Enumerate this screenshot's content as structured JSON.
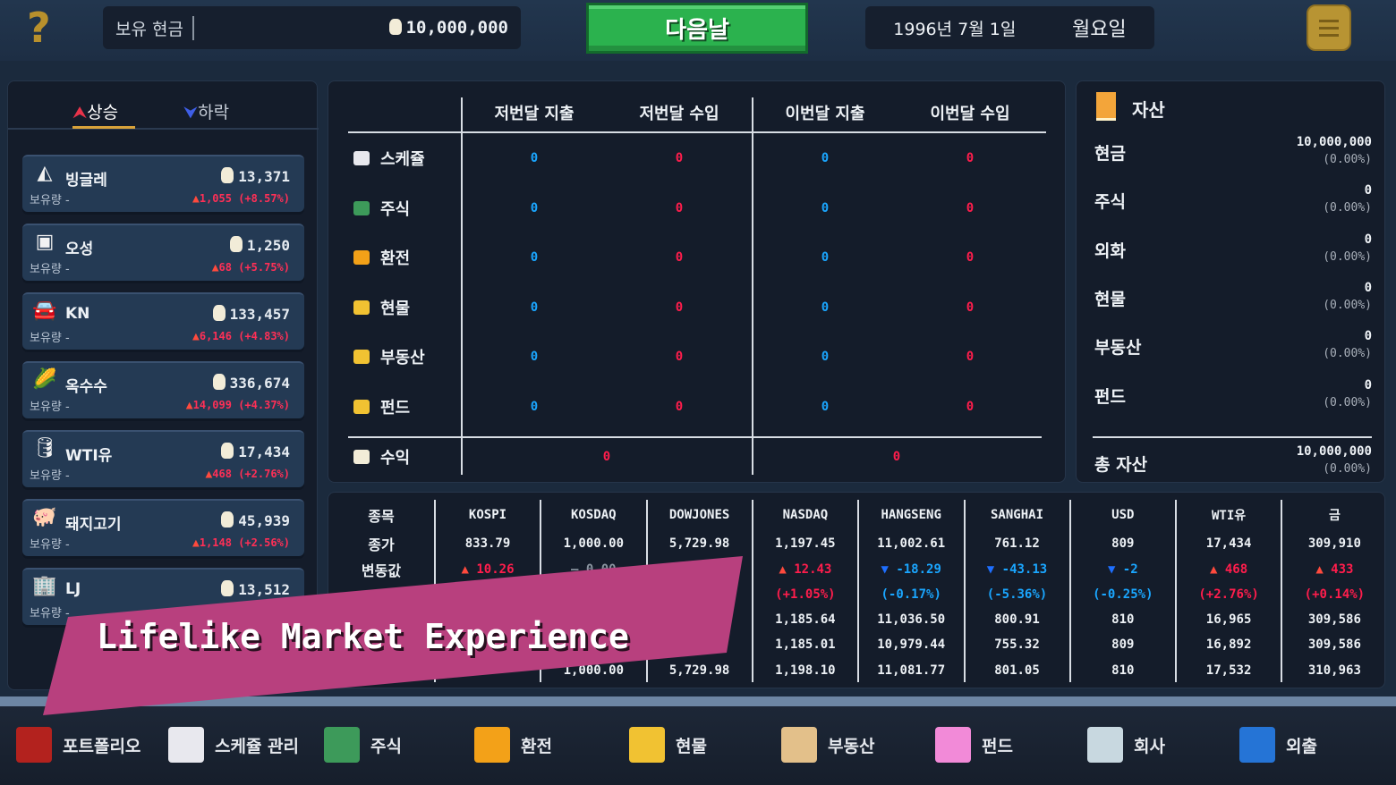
{
  "topbar": {
    "help_icon": "question-icon",
    "cash_label": "보유 현금",
    "cash_value": "10,000,000",
    "next_day": "다음날",
    "date": "1996년 7월 1일",
    "weekday": "월요일",
    "menu_icon": "menu-icon"
  },
  "movers": {
    "tabs": [
      "상승",
      "하락"
    ],
    "active_tab": "상승",
    "holding_label": "보유량 -",
    "items": [
      {
        "name": "빙글레",
        "icon": "pizza-icon",
        "price": "13,371",
        "change": "1,055 (+8.57%)"
      },
      {
        "name": "오성",
        "icon": "chip-icon",
        "price": "1,250",
        "change": "68 (+5.75%)"
      },
      {
        "name": "KN",
        "icon": "car-icon",
        "price": "133,457",
        "change": "6,146 (+4.83%)"
      },
      {
        "name": "옥수수",
        "icon": "corn-icon",
        "price": "336,674",
        "change": "14,099 (+4.37%)"
      },
      {
        "name": "WTI유",
        "icon": "oil-icon",
        "price": "17,434",
        "change": "468 (+2.76%)"
      },
      {
        "name": "돼지고기",
        "icon": "pork-icon",
        "price": "45,939",
        "change": "1,148 (+2.56%)"
      },
      {
        "name": "LJ",
        "icon": "building-icon",
        "price": "13,512",
        "change": ""
      }
    ]
  },
  "ledger": {
    "headers": [
      "저번달 지출",
      "저번달 수입",
      "이번달 지출",
      "이번달 수입"
    ],
    "rows": [
      {
        "label": "스케쥴",
        "icon": "calendar-icon",
        "values": [
          "0",
          "0",
          "0",
          "0"
        ]
      },
      {
        "label": "주식",
        "icon": "chart-icon",
        "values": [
          "0",
          "0",
          "0",
          "0"
        ]
      },
      {
        "label": "환전",
        "icon": "coin-icon",
        "values": [
          "0",
          "0",
          "0",
          "0"
        ]
      },
      {
        "label": "현물",
        "icon": "gold-icon",
        "values": [
          "0",
          "0",
          "0",
          "0"
        ]
      },
      {
        "label": "부동산",
        "icon": "gold-icon",
        "values": [
          "0",
          "0",
          "0",
          "0"
        ]
      },
      {
        "label": "펀드",
        "icon": "gold-icon",
        "values": [
          "0",
          "0",
          "0",
          "0"
        ]
      }
    ],
    "profit_label": "수익",
    "profit_values": [
      "0",
      "0"
    ]
  },
  "assets": {
    "title": "자산",
    "rows": [
      {
        "label": "현금",
        "value": "10,000,000",
        "pct": "(0.00%)"
      },
      {
        "label": "주식",
        "value": "0",
        "pct": "(0.00%)"
      },
      {
        "label": "외화",
        "value": "0",
        "pct": "(0.00%)"
      },
      {
        "label": "현물",
        "value": "0",
        "pct": "(0.00%)"
      },
      {
        "label": "부동산",
        "value": "0",
        "pct": "(0.00%)"
      },
      {
        "label": "펀드",
        "value": "0",
        "pct": "(0.00%)"
      }
    ],
    "total_label": "총 자산",
    "total_value": "10,000,000",
    "total_pct": "(0.00%)"
  },
  "market": {
    "row_labels": [
      "종목",
      "종가",
      "변동값"
    ],
    "columns": [
      {
        "name": "KOSPI",
        "close": "833.79",
        "change": "10.26",
        "dir": "up",
        "pct": "",
        "r5": "",
        "r6": "",
        "r7": ""
      },
      {
        "name": "KOSDAQ",
        "close": "1,000.00",
        "change": "0.00",
        "dir": "flat",
        "pct": "",
        "r5": "",
        "r6": "",
        "r7": "1,000.00"
      },
      {
        "name": "DOWJONES",
        "close": "5,729.98",
        "change": "",
        "dir": "",
        "pct": "",
        "r5": "",
        "r6": "",
        "r7": "5,729.98"
      },
      {
        "name": "NASDAQ",
        "close": "1,197.45",
        "change": "12.43",
        "dir": "up",
        "pct": "(+1.05%)",
        "r5": "1,185.64",
        "r6": "1,185.01",
        "r7": "1,198.10"
      },
      {
        "name": "HANGSENG",
        "close": "11,002.61",
        "change": "-18.29",
        "dir": "down",
        "pct": "(-0.17%)",
        "r5": "11,036.50",
        "r6": "10,979.44",
        "r7": "11,081.77"
      },
      {
        "name": "SANGHAI",
        "close": "761.12",
        "change": "-43.13",
        "dir": "down",
        "pct": "(-5.36%)",
        "r5": "800.91",
        "r6": "755.32",
        "r7": "801.05"
      },
      {
        "name": "USD",
        "close": "809",
        "change": "-2",
        "dir": "down",
        "pct": "(-0.25%)",
        "r5": "810",
        "r6": "809",
        "r7": "810"
      },
      {
        "name": "WTI유",
        "close": "17,434",
        "change": "468",
        "dir": "up",
        "pct": "(+2.76%)",
        "r5": "16,965",
        "r6": "16,892",
        "r7": "17,532"
      },
      {
        "name": "금",
        "close": "309,910",
        "change": "433",
        "dir": "up",
        "pct": "(+0.14%)",
        "r5": "309,586",
        "r6": "309,586",
        "r7": "310,963"
      }
    ]
  },
  "nav": [
    {
      "label": "포트폴리오",
      "icon": "wallet-icon",
      "color": "#b3221e"
    },
    {
      "label": "스케쥴 관리",
      "icon": "calendar-icon",
      "color": "#e8e8ee"
    },
    {
      "label": "주식",
      "icon": "chart-icon",
      "color": "#3d9a5a"
    },
    {
      "label": "환전",
      "icon": "coin-icon",
      "color": "#f3a118"
    },
    {
      "label": "현물",
      "icon": "gold-icon",
      "color": "#f1c232"
    },
    {
      "label": "부동산",
      "icon": "house-icon",
      "color": "#e3c08a"
    },
    {
      "label": "펀드",
      "icon": "piggy-bank-icon",
      "color": "#f28ad8"
    },
    {
      "label": "회사",
      "icon": "office-icon",
      "color": "#c8d8e0"
    },
    {
      "label": "외출",
      "icon": "van-icon",
      "color": "#2574d6"
    }
  ],
  "banner": {
    "text": "Lifelike Market Experience"
  },
  "colors": {
    "up": "#ff1d4c",
    "down": "#1aa6ff",
    "accent_green": "#2bb24e",
    "banner": "#b8407e"
  }
}
